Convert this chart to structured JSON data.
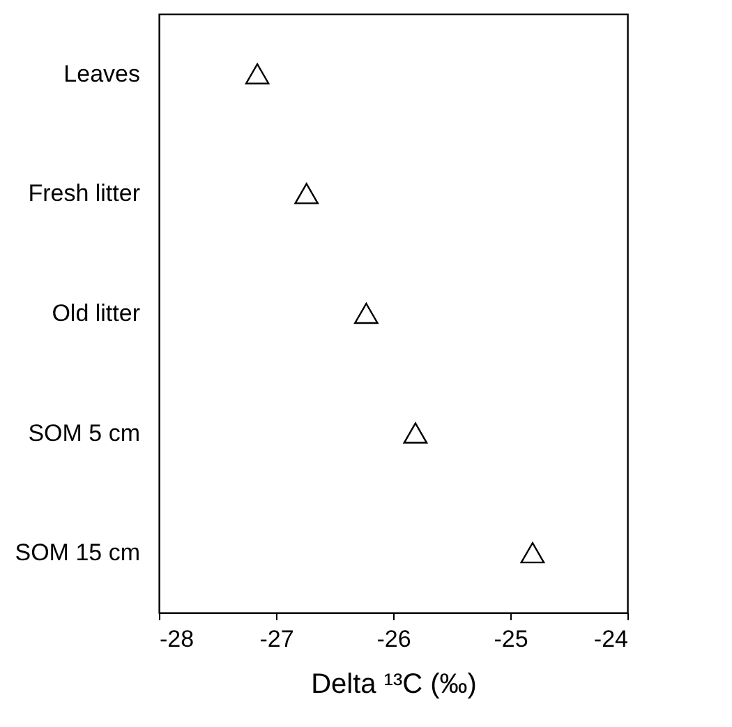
{
  "chart_data": {
    "type": "scatter",
    "orientation": "horizontal",
    "xlabel": "Delta ¹³C (‰)",
    "categories": [
      "Leaves",
      "Fresh litter",
      "Old litter",
      "SOM 5 cm",
      "SOM 15 cm"
    ],
    "series": [
      {
        "color": "#000000",
        "values": [
          -27.16,
          -26.74,
          -26.23,
          -25.81,
          -24.81
        ]
      }
    ],
    "xlim": [
      -28,
      -24
    ],
    "xticks": [
      -28,
      -27,
      -26,
      -25,
      -24
    ],
    "marker": "triangle",
    "grid": false
  }
}
